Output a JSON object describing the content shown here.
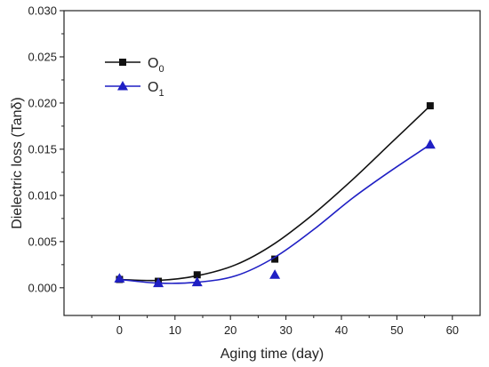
{
  "chart_data": {
    "type": "line",
    "title": "",
    "xlabel": "Aging time (day)",
    "ylabel": "Dielectric loss (Tanδ)",
    "xlim": [
      -10,
      65
    ],
    "ylim": [
      -0.003,
      0.03
    ],
    "xticks": [
      0,
      10,
      20,
      30,
      40,
      50,
      60
    ],
    "yticks": [
      0.0,
      0.005,
      0.01,
      0.015,
      0.02,
      0.025,
      0.03
    ],
    "xtick_labels": [
      "0",
      "10",
      "20",
      "30",
      "40",
      "50",
      "60"
    ],
    "ytick_labels": [
      "0.000",
      "0.005",
      "0.010",
      "0.015",
      "0.020",
      "0.025",
      "0.030"
    ],
    "grid": false,
    "legend_position": "top-left",
    "series": [
      {
        "name_base": "O",
        "name_sub": "0",
        "color": "#111111",
        "marker": "square",
        "x": [
          0,
          7,
          14,
          28,
          56
        ],
        "y": [
          0.0009,
          0.0007,
          0.0014,
          0.0031,
          0.0197
        ],
        "curve_x": [
          0,
          7,
          14,
          21,
          28,
          35,
          42,
          49,
          56
        ],
        "curve_y": [
          0.0009,
          0.0008,
          0.0013,
          0.0025,
          0.0048,
          0.008,
          0.0117,
          0.0157,
          0.0197
        ]
      },
      {
        "name_base": "O",
        "name_sub": "1",
        "color": "#1f1fc4",
        "marker": "triangle",
        "x": [
          0,
          7,
          14,
          28,
          56
        ],
        "y": [
          0.001,
          0.0005,
          0.0006,
          0.0014,
          0.0155
        ],
        "curve_x": [
          0,
          7,
          14,
          21,
          28,
          35,
          42,
          49,
          56
        ],
        "curve_y": [
          0.0009,
          0.0005,
          0.0006,
          0.0013,
          0.0033,
          0.0063,
          0.0097,
          0.0127,
          0.0155
        ]
      }
    ]
  }
}
